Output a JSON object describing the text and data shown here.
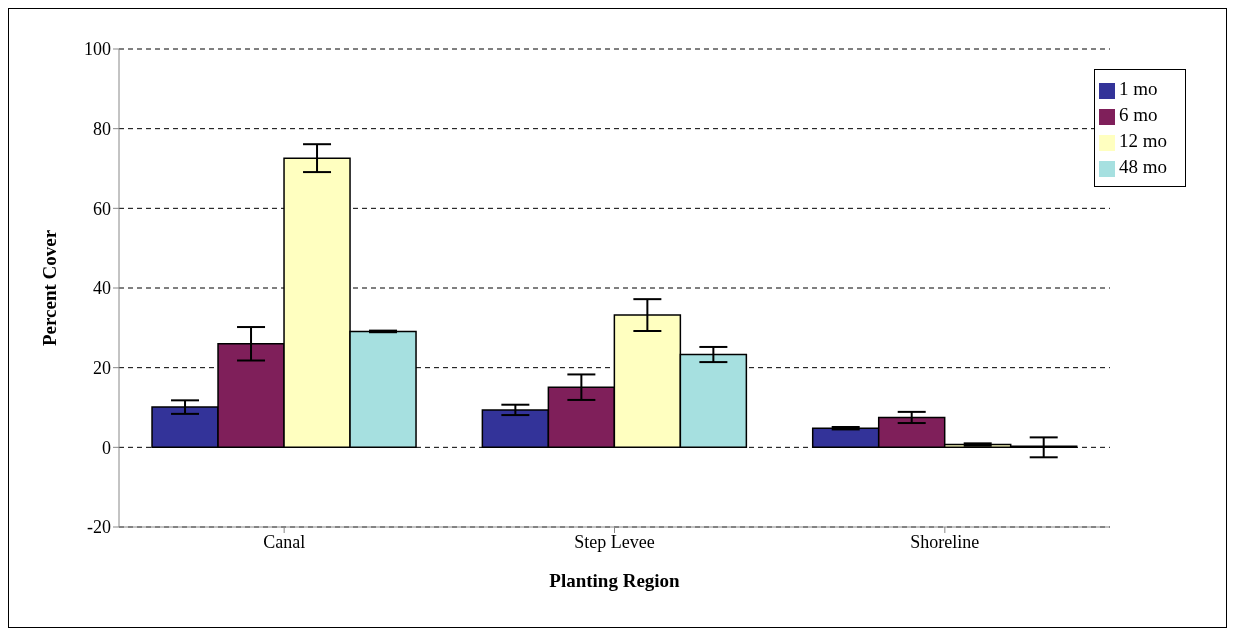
{
  "chart_data": {
    "type": "bar",
    "xlabel": "Planting Region",
    "ylabel": "Percent Cover",
    "categories": [
      "Canal",
      "Step Levee",
      "Shoreline"
    ],
    "series": [
      {
        "name": "1 mo",
        "color": "#333399",
        "values": [
          10.1,
          9.4,
          4.8
        ],
        "errors": [
          1.7,
          1.3,
          0.3
        ]
      },
      {
        "name": "6 mo",
        "color": "#7f1f5a",
        "values": [
          26,
          15.1,
          7.5
        ],
        "errors": [
          4.2,
          3.2,
          1.4
        ]
      },
      {
        "name": "12 mo",
        "color": "#ffffc0",
        "values": [
          72.6,
          33.2,
          0.7
        ],
        "errors": [
          3.5,
          4,
          0.3
        ]
      },
      {
        "name": "48 mo",
        "color": "#a6e0e0",
        "values": [
          29.1,
          23.3,
          0
        ],
        "errors": [
          0.2,
          1.9,
          2.5
        ]
      }
    ],
    "ylim": [
      -20,
      100
    ],
    "yticks": [
      -20,
      0,
      20,
      40,
      60,
      80,
      100
    ],
    "grid": "y",
    "legend": "top right"
  }
}
